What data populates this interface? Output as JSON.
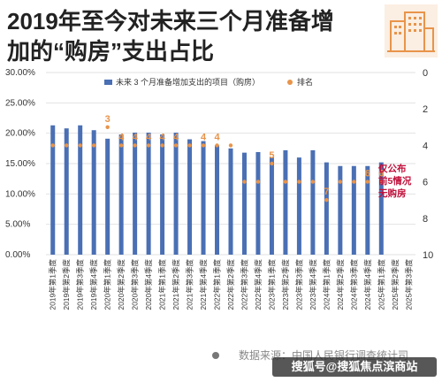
{
  "header": {
    "title_line1": "2019年至今对未来三个月准备增",
    "title_line2": "加的“购房”支出占比"
  },
  "footer": {
    "source": "数据来源：中国人民银行调查统计司",
    "brand": "搜狐号@搜狐焦点滨商站"
  },
  "colors": {
    "bar": "#4a6fb4",
    "rank": "#e8944a",
    "note": "#c0103a",
    "title": "#222222"
  },
  "chart_data": {
    "type": "bar",
    "legend": {
      "bar_series": "未来 3 个月准备增加支出的项目（购房）",
      "rank_series": "排名",
      "placement": "top"
    },
    "categories": [
      "2019年第1季度",
      "2019年第2季度",
      "2019年第3季度",
      "2019年第4季度",
      "2020年第1季度",
      "2020年第2季度",
      "2020年第3季度",
      "2020年第4季度",
      "2021年第1季度",
      "2021年第2季度",
      "2021年第3季度",
      "2021年第4季度",
      "2022年第1季度",
      "2022年第2季度",
      "2022年第3季度",
      "2022年第4季度",
      "2023年第1季度",
      "2023年第2季度",
      "2023年第3季度",
      "2023年第4季度",
      "2024年第1季度",
      "2024年第2季度",
      "2024年第3季度",
      "2024年第4季度",
      "2025年第1季度",
      "2025年第2季度",
      "2025年第3季度"
    ],
    "values": [
      21.3,
      20.8,
      21.3,
      20.5,
      19.1,
      19.8,
      20.1,
      20.1,
      19.8,
      20.1,
      19.0,
      18.7,
      18.0,
      17.5,
      16.8,
      16.9,
      16.0,
      17.2,
      16.0,
      17.2,
      15.2,
      14.6,
      14.6,
      14.6,
      15.2,
      null,
      null
    ],
    "ranks": [
      4,
      4,
      4,
      4,
      3,
      4,
      4,
      4,
      4,
      4,
      4,
      4,
      4,
      4,
      6,
      6,
      5,
      6,
      6,
      6,
      7,
      6,
      6,
      6,
      6,
      null,
      null
    ],
    "rank_labels": [
      "",
      "",
      "",
      "",
      "3",
      "4",
      "4",
      "4",
      "4",
      "4",
      "",
      "4",
      "4",
      "",
      "",
      "",
      "5",
      "",
      "",
      "",
      "7",
      "",
      "",
      "6",
      "6",
      "",
      ""
    ],
    "ylim": [
      0,
      30
    ],
    "yticks": [
      "0.00%",
      "5.00%",
      "10.00%",
      "15.00%",
      "20.00%",
      "25.00%",
      "30.00%"
    ],
    "rank_axis": {
      "min": 0,
      "max": 10,
      "reversed": true,
      "ticks": [
        "0",
        "2",
        "4",
        "6",
        "8",
        "10"
      ]
    },
    "annotation": [
      "仅公布",
      "前5情况",
      "无购房"
    ],
    "grid": true
  }
}
